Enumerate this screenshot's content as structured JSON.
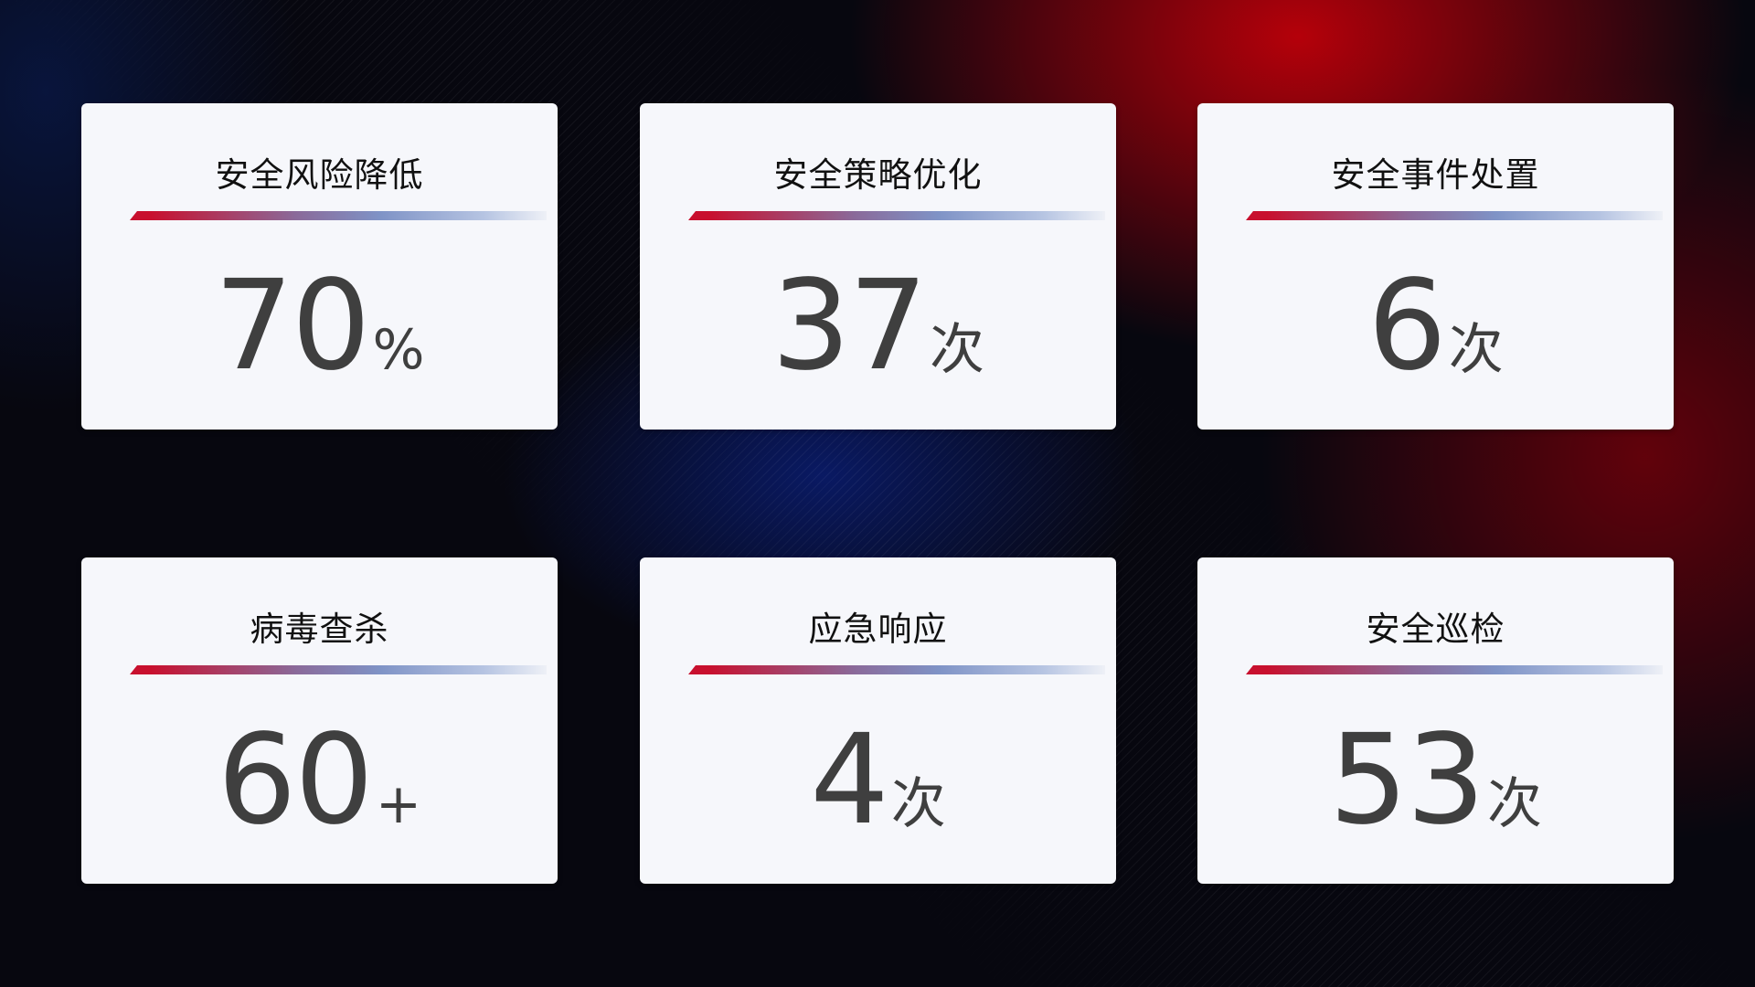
{
  "cards": [
    {
      "title": "安全风险降低",
      "value": "70",
      "unit": "%"
    },
    {
      "title": "安全策略优化",
      "value": "37",
      "unit": "次"
    },
    {
      "title": "安全事件处置",
      "value": "6",
      "unit": "次"
    },
    {
      "title": "病毒查杀",
      "value": "60",
      "unit": "+"
    },
    {
      "title": "应急响应",
      "value": "4",
      "unit": "次"
    },
    {
      "title": "安全巡检",
      "value": "53",
      "unit": "次"
    }
  ],
  "colors": {
    "accent_red": "#c8102e",
    "accent_blue": "#7f93c6",
    "card_bg": "#f6f7fb",
    "value_text": "#3f3f3f"
  }
}
